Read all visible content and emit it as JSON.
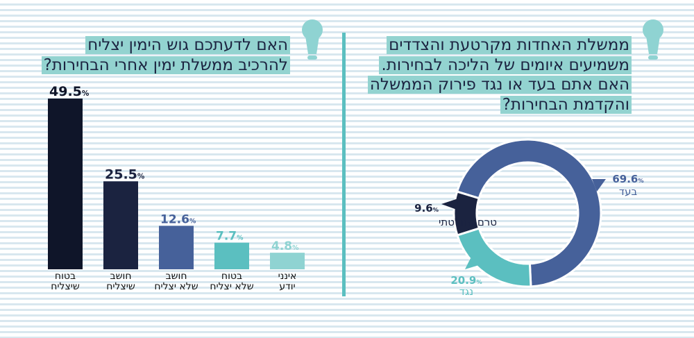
{
  "left": {
    "title_lines": [
      "האם לדעתכם גוש הימין יצליח",
      "להרכיב ממשלת ימין אחרי הבחירות?"
    ]
  },
  "right": {
    "title_lines": [
      "ממשלת האחדות מקרטעת והצדדים",
      "משמיעים איומים של הליכה לבחירות.",
      "האם אתם בעד או נגד פירוק הממשלה",
      "והקדמת הבחירות?"
    ]
  },
  "icons": [
    "lightbulb-icon",
    "lightbulb-icon"
  ],
  "chart_data": [
    {
      "type": "bar",
      "categories": [
        [
          "בטוח",
          "שיצליח"
        ],
        [
          "חושב",
          "שיצליח"
        ],
        [
          "חושב",
          "שלא יצליח"
        ],
        [
          "בטוח",
          "שלא יצליח"
        ],
        [
          "אינני",
          "יודע"
        ]
      ],
      "values": [
        49.5,
        25.5,
        12.6,
        7.7,
        4.8
      ],
      "labels": [
        "49.5",
        "25.5",
        "12.6",
        "7.7",
        "4.8"
      ],
      "unit": "%",
      "colors": [
        "#0f1529",
        "#1b2340",
        "#46619a",
        "#5bbfc0",
        "#8fd3d2"
      ],
      "label_colors": [
        "#0f1529",
        "#1b2340",
        "#46619a",
        "#5bbfc0",
        "#8fd3d2"
      ],
      "ylim": [
        0,
        50
      ]
    },
    {
      "type": "pie",
      "donut": true,
      "slices": [
        {
          "name": "בעד",
          "value": 69.6,
          "label": "69.6",
          "color": "#46619a"
        },
        {
          "name": "נגד",
          "value": 20.9,
          "label": "20.9",
          "color": "#5bbfc0"
        },
        {
          "name": "טרם החלטתי",
          "value": 9.6,
          "label": "9.6",
          "color": "#1b2340"
        }
      ],
      "unit": "%"
    }
  ]
}
